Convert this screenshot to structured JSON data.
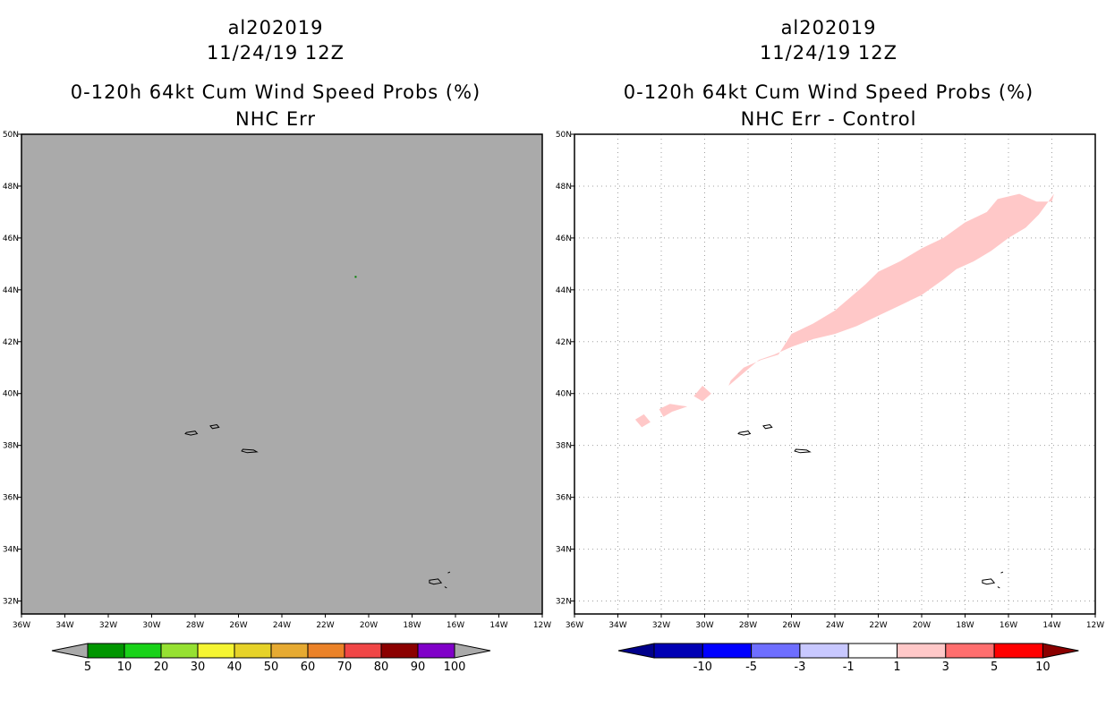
{
  "chart_data": [
    {
      "type": "heatmap",
      "title_lines": [
        "al202019",
        "11/24/19 12Z",
        "0-120h 64kt Cum Wind Speed Probs (%)",
        "NHC Err"
      ],
      "x_ticks": [
        "36W",
        "34W",
        "32W",
        "30W",
        "28W",
        "26W",
        "24W",
        "22W",
        "20W",
        "18W",
        "16W",
        "14W",
        "12W"
      ],
      "y_ticks": [
        "32N",
        "34N",
        "36N",
        "38N",
        "40N",
        "42N",
        "44N",
        "46N",
        "48N",
        "50N"
      ],
      "xlim": [
        -36,
        -12
      ],
      "ylim": [
        31.5,
        50
      ],
      "grid": false,
      "background_color": "#aaaaaa",
      "colorbar": {
        "labels": [
          "5",
          "10",
          "20",
          "30",
          "40",
          "50",
          "60",
          "70",
          "80",
          "90",
          "100"
        ],
        "colors": [
          "#009600",
          "#19d219",
          "#96e132",
          "#f5f532",
          "#e6d228",
          "#e6aa32",
          "#eb8228",
          "#f04646",
          "#8b0000",
          "#8000c8"
        ],
        "end_color": "#aaaaaa"
      },
      "markers": [
        {
          "lon": -20.6,
          "lat": 44.5,
          "color": "#008000"
        }
      ]
    },
    {
      "type": "heatmap",
      "title_lines": [
        "al202019",
        "11/24/19 12Z",
        "0-120h 64kt Cum Wind Speed Probs (%)",
        "NHC Err - Control"
      ],
      "x_ticks": [
        "36W",
        "34W",
        "32W",
        "30W",
        "28W",
        "26W",
        "24W",
        "22W",
        "20W",
        "18W",
        "16W",
        "14W",
        "12W"
      ],
      "y_ticks": [
        "32N",
        "34N",
        "36N",
        "38N",
        "40N",
        "42N",
        "44N",
        "46N",
        "48N",
        "50N"
      ],
      "xlim": [
        -36,
        -12
      ],
      "ylim": [
        31.5,
        50
      ],
      "grid": true,
      "background_color": "#ffffff",
      "colorbar": {
        "labels": [
          "-10",
          "-5",
          "-3",
          "-1",
          "1",
          "3",
          "5",
          "10"
        ],
        "colors": [
          "#0000b4",
          "#0000ff",
          "#6e6eff",
          "#c8c8ff",
          "#ffffff",
          "#ffc8c8",
          "#ff6e6e",
          "#ff0000"
        ],
        "low_end_color": "#00008b",
        "high_end_color": "#8b0000"
      },
      "swath_color": "#ffc8c8",
      "swath_upper": [
        [
          -28.8,
          40.5
        ],
        [
          -28.2,
          41.0
        ],
        [
          -27.4,
          41.3
        ],
        [
          -26.6,
          41.5
        ],
        [
          -26.0,
          42.3
        ],
        [
          -25.0,
          42.7
        ],
        [
          -24.0,
          43.2
        ],
        [
          -23.3,
          43.7
        ],
        [
          -22.6,
          44.2
        ],
        [
          -22.0,
          44.7
        ],
        [
          -21.0,
          45.1
        ],
        [
          -20.0,
          45.6
        ],
        [
          -19.0,
          46.0
        ],
        [
          -18.0,
          46.6
        ],
        [
          -17.0,
          47.0
        ],
        [
          -16.5,
          47.5
        ],
        [
          -15.5,
          47.7
        ],
        [
          -14.7,
          47.4
        ],
        [
          -14.0,
          47.4
        ],
        [
          -13.9,
          47.7
        ]
      ],
      "swath_lower": [
        [
          -14.6,
          46.9
        ],
        [
          -15.2,
          46.4
        ],
        [
          -16.0,
          46.0
        ],
        [
          -16.8,
          45.5
        ],
        [
          -17.6,
          45.1
        ],
        [
          -18.4,
          44.8
        ],
        [
          -19.0,
          44.4
        ],
        [
          -20.0,
          43.8
        ],
        [
          -21.0,
          43.4
        ],
        [
          -22.0,
          43.0
        ],
        [
          -23.0,
          42.6
        ],
        [
          -24.0,
          42.3
        ],
        [
          -25.0,
          42.1
        ],
        [
          -26.0,
          41.8
        ],
        [
          -26.8,
          41.5
        ],
        [
          -27.5,
          41.3
        ],
        [
          -28.2,
          40.8
        ],
        [
          -28.9,
          40.3
        ]
      ],
      "blobs": [
        [
          [
            -30.5,
            39.9
          ],
          [
            -30.1,
            40.3
          ],
          [
            -29.7,
            40.0
          ],
          [
            -30.1,
            39.7
          ]
        ],
        [
          [
            -32.1,
            39.4
          ],
          [
            -31.6,
            39.6
          ],
          [
            -30.8,
            39.5
          ],
          [
            -31.5,
            39.3
          ],
          [
            -31.9,
            39.1
          ]
        ],
        [
          [
            -33.2,
            39.0
          ],
          [
            -32.8,
            39.2
          ],
          [
            -32.5,
            38.9
          ],
          [
            -32.9,
            38.7
          ]
        ]
      ]
    }
  ],
  "islands": [
    [
      [
        -28.4,
        38.5
      ],
      [
        -28.0,
        38.55
      ],
      [
        -27.9,
        38.45
      ],
      [
        -28.2,
        38.4
      ],
      [
        -28.45,
        38.45
      ]
    ],
    [
      [
        -27.3,
        38.75
      ],
      [
        -27.0,
        38.8
      ],
      [
        -26.9,
        38.7
      ],
      [
        -27.2,
        38.65
      ]
    ],
    [
      [
        -25.8,
        37.85
      ],
      [
        -25.3,
        37.82
      ],
      [
        -25.15,
        37.75
      ],
      [
        -25.6,
        37.72
      ],
      [
        -25.85,
        37.78
      ]
    ],
    [
      [
        -17.2,
        32.8
      ],
      [
        -16.8,
        32.85
      ],
      [
        -16.65,
        32.7
      ],
      [
        -17.0,
        32.65
      ],
      [
        -17.2,
        32.7
      ]
    ],
    [
      [
        -16.35,
        33.08
      ],
      [
        -16.25,
        33.12
      ]
    ],
    [
      [
        -16.5,
        32.55
      ],
      [
        -16.4,
        32.5
      ]
    ]
  ]
}
